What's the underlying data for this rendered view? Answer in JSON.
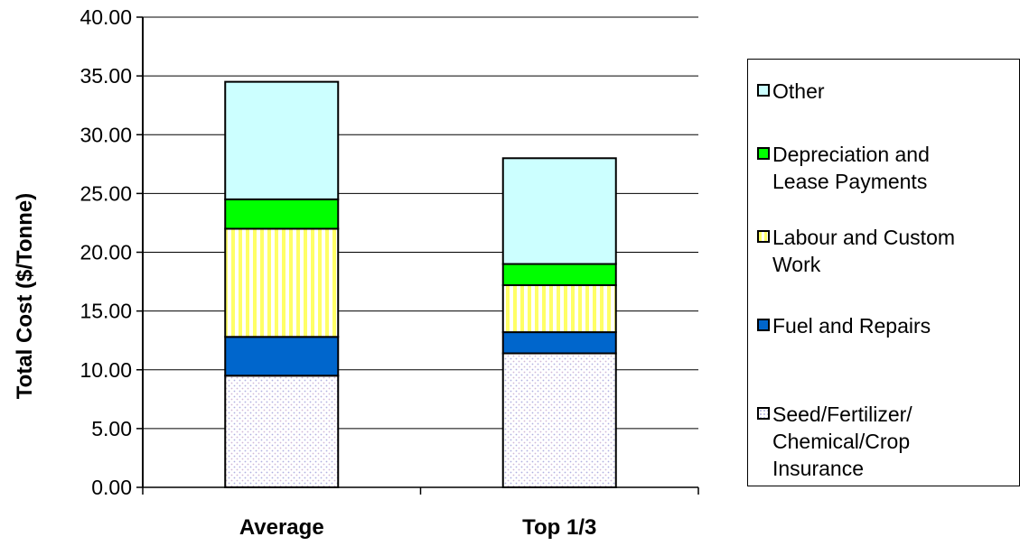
{
  "chart_data": {
    "type": "bar",
    "stacked": true,
    "categories": [
      "Average",
      "Top 1/3"
    ],
    "series": [
      {
        "name": "Seed/Fertilizer/\nChemical/Crop\nInsurance",
        "values": [
          9.5,
          11.4
        ],
        "color": "#e8e8f8",
        "pattern": "dots"
      },
      {
        "name": "Fuel and Repairs",
        "values": [
          3.3,
          1.8
        ],
        "color": "#0066cc"
      },
      {
        "name": "Labour and Custom\nWork",
        "values": [
          9.2,
          4.0
        ],
        "color": "#ffff66",
        "pattern": "vertical-stripes"
      },
      {
        "name": "Depreciation and\nLease Payments",
        "values": [
          2.5,
          1.8
        ],
        "color": "#00ff00"
      },
      {
        "name": "Other",
        "values": [
          10.0,
          9.0
        ],
        "color": "#ccffff"
      }
    ],
    "title": "",
    "xlabel": "",
    "ylabel": "Total Cost ($/Tonne)",
    "ylim": [
      0,
      40
    ],
    "yticks": [
      "0.00",
      "5.00",
      "10.00",
      "15.00",
      "20.00",
      "25.00",
      "30.00",
      "35.00",
      "40.00"
    ],
    "grid": true,
    "legend_position": "right",
    "legend_order": [
      4,
      3,
      2,
      1,
      0
    ]
  }
}
